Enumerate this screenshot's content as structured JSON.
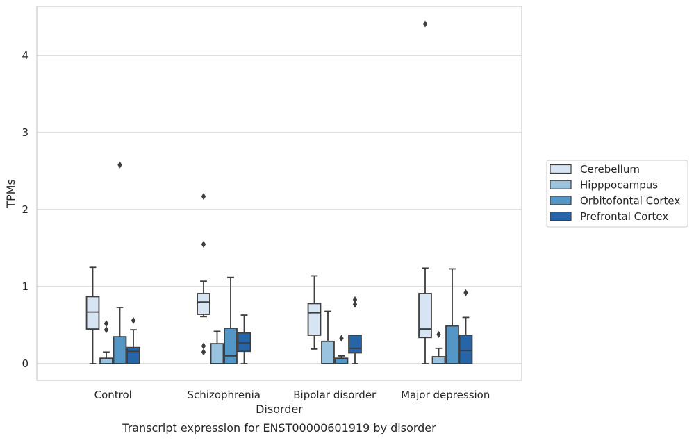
{
  "chart_data": {
    "type": "box",
    "title": "",
    "caption": "Transcript expression for ENST00000601919 by disorder",
    "xlabel": "Disorder",
    "ylabel": "TPMs",
    "ylim": [
      -0.22,
      4.65
    ],
    "yticks": [
      0,
      1,
      2,
      3,
      4
    ],
    "grid": "horizontal",
    "legend_position": "right",
    "categories": [
      "Control",
      "Schizophrenia",
      "Bipolar disorder",
      "Major depression"
    ],
    "series": [
      {
        "name": "Cerebellum",
        "color": "#d6e4f4",
        "boxes": [
          {
            "whisker_low": 0.0,
            "q1": 0.45,
            "median": 0.67,
            "q3": 0.87,
            "whisker_high": 1.25,
            "outliers": []
          },
          {
            "whisker_low": 0.61,
            "q1": 0.64,
            "median": 0.8,
            "q3": 0.91,
            "whisker_high": 1.07,
            "outliers": [
              2.17,
              1.55,
              0.23,
              0.15
            ]
          },
          {
            "whisker_low": 0.19,
            "q1": 0.37,
            "median": 0.66,
            "q3": 0.78,
            "whisker_high": 1.14,
            "outliers": []
          },
          {
            "whisker_low": 0.0,
            "q1": 0.34,
            "median": 0.45,
            "q3": 0.91,
            "whisker_high": 1.24,
            "outliers": [
              4.41
            ]
          }
        ]
      },
      {
        "name": "Hipppocampus",
        "color": "#9ac3df",
        "boxes": [
          {
            "whisker_low": 0.0,
            "q1": 0.0,
            "median": 0.0,
            "q3": 0.07,
            "whisker_high": 0.15,
            "outliers": [
              0.52,
              0.44
            ]
          },
          {
            "whisker_low": 0.0,
            "q1": 0.0,
            "median": 0.0,
            "q3": 0.26,
            "whisker_high": 0.42,
            "outliers": []
          },
          {
            "whisker_low": 0.0,
            "q1": 0.0,
            "median": 0.0,
            "q3": 0.29,
            "whisker_high": 0.68,
            "outliers": []
          },
          {
            "whisker_low": 0.0,
            "q1": 0.0,
            "median": 0.0,
            "q3": 0.09,
            "whisker_high": 0.2,
            "outliers": [
              0.38
            ]
          }
        ]
      },
      {
        "name": "Orbitofontal Cortex",
        "color": "#5497c7",
        "boxes": [
          {
            "whisker_low": 0.0,
            "q1": 0.0,
            "median": 0.0,
            "q3": 0.35,
            "whisker_high": 0.73,
            "outliers": [
              2.58
            ]
          },
          {
            "whisker_low": 0.0,
            "q1": 0.0,
            "median": 0.1,
            "q3": 0.46,
            "whisker_high": 1.12,
            "outliers": []
          },
          {
            "whisker_low": 0.0,
            "q1": 0.0,
            "median": 0.0,
            "q3": 0.07,
            "whisker_high": 0.1,
            "outliers": [
              0.33
            ]
          },
          {
            "whisker_low": 0.0,
            "q1": 0.0,
            "median": 0.0,
            "q3": 0.49,
            "whisker_high": 1.23,
            "outliers": []
          }
        ]
      },
      {
        "name": "Prefrontal Cortex",
        "color": "#2565a8",
        "boxes": [
          {
            "whisker_low": 0.0,
            "q1": 0.0,
            "median": 0.16,
            "q3": 0.21,
            "whisker_high": 0.44,
            "outliers": [
              0.56
            ]
          },
          {
            "whisker_low": 0.0,
            "q1": 0.16,
            "median": 0.27,
            "q3": 0.4,
            "whisker_high": 0.63,
            "outliers": []
          },
          {
            "whisker_low": 0.0,
            "q1": 0.14,
            "median": 0.2,
            "q3": 0.37,
            "whisker_high": 0.37,
            "outliers": [
              0.83,
              0.77
            ]
          },
          {
            "whisker_low": 0.0,
            "q1": 0.0,
            "median": 0.17,
            "q3": 0.37,
            "whisker_high": 0.6,
            "outliers": [
              0.92
            ]
          }
        ]
      }
    ]
  }
}
